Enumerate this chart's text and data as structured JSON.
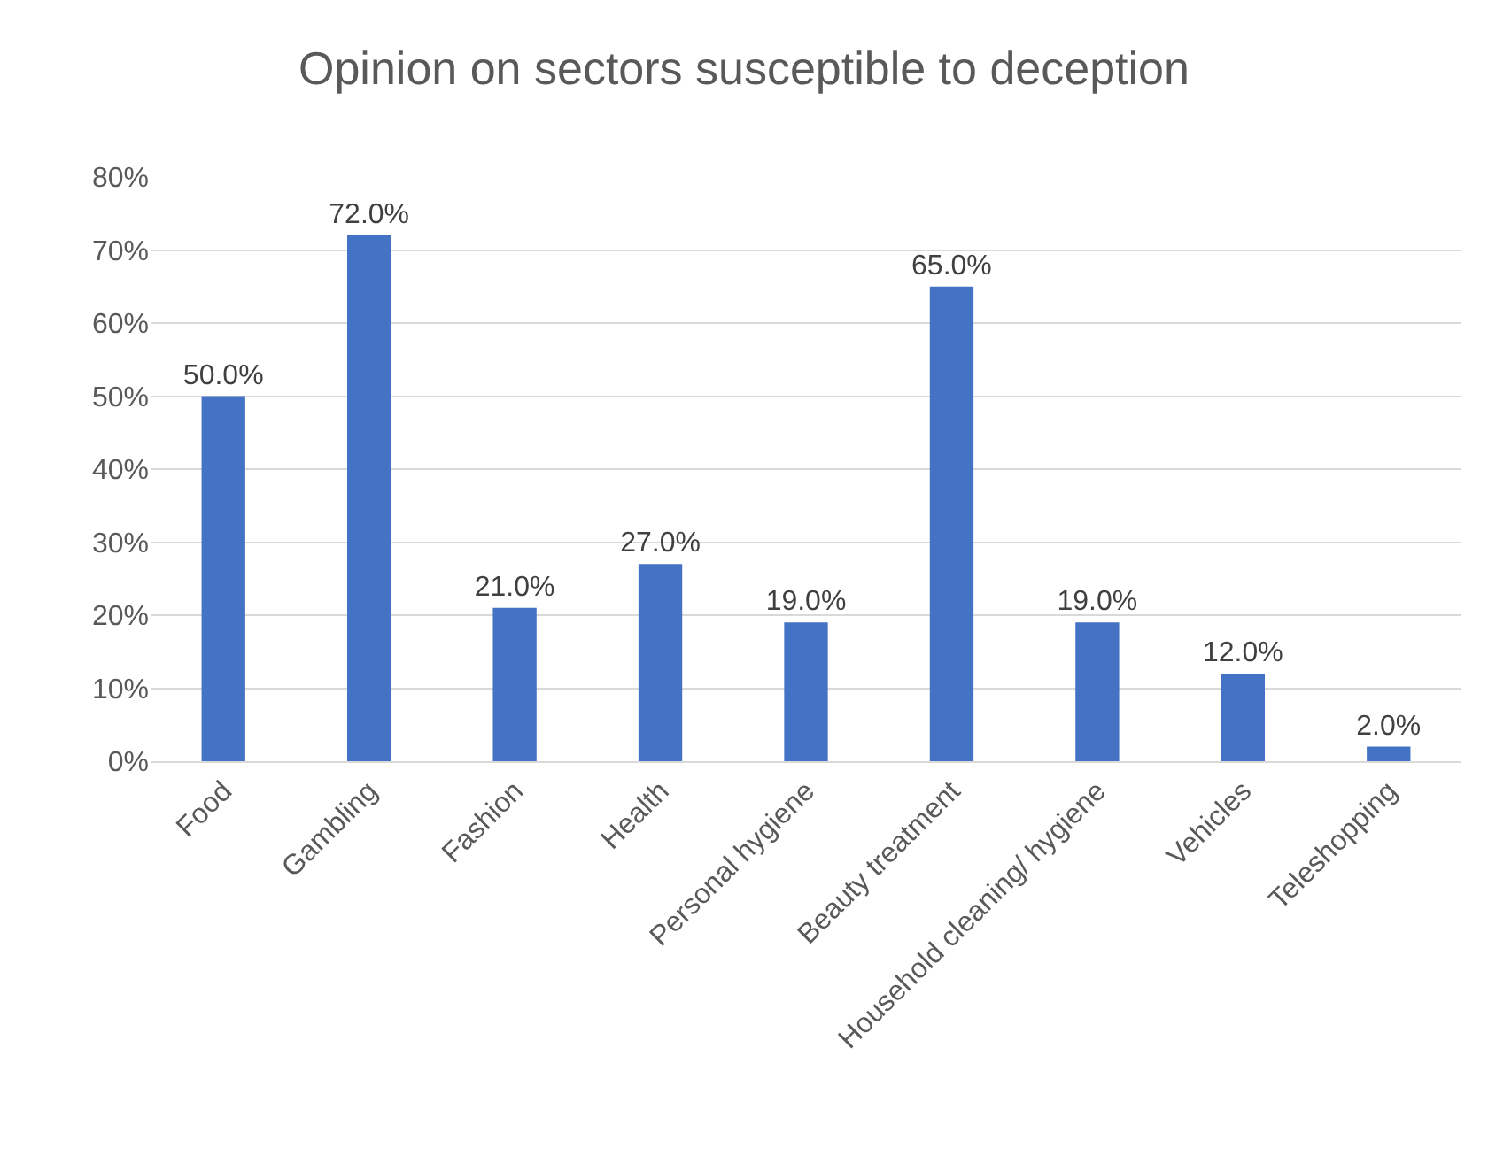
{
  "chart_data": {
    "type": "bar",
    "title": "Opinion on sectors susceptible to deception",
    "categories": [
      "Food",
      "Gambling",
      "Fashion",
      "Health",
      "Personal hygiene",
      "Beauty treatment",
      "Household cleaning/ hygiene",
      "Vehicles",
      "Teleshopping"
    ],
    "values": [
      50.0,
      72.0,
      21.0,
      27.0,
      19.0,
      65.0,
      19.0,
      12.0,
      2.0
    ],
    "value_labels": [
      "50.0%",
      "72.0%",
      "21.0%",
      "27.0%",
      "19.0%",
      "65.0%",
      "19.0%",
      "12.0%",
      "2.0%"
    ],
    "color": "#4472c4",
    "ylim": [
      0,
      80
    ],
    "yticks": [
      {
        "value": 0,
        "label": "0%"
      },
      {
        "value": 10,
        "label": "10%"
      },
      {
        "value": 20,
        "label": "20%"
      },
      {
        "value": 30,
        "label": "30%"
      },
      {
        "value": 40,
        "label": "40%"
      },
      {
        "value": 50,
        "label": "50%"
      },
      {
        "value": 60,
        "label": "60%"
      },
      {
        "value": 70,
        "label": "70%"
      },
      {
        "value": 80,
        "label": "80%"
      }
    ],
    "grid": "y"
  }
}
